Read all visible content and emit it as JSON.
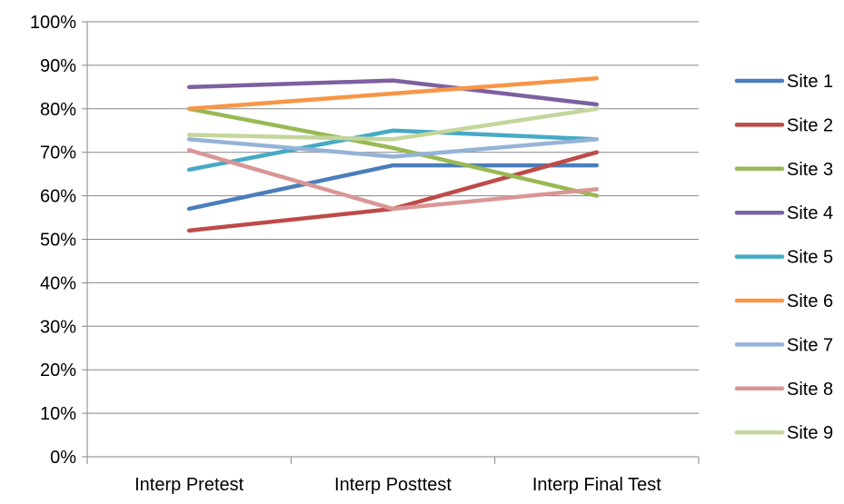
{
  "chart_data": {
    "type": "line",
    "categories": [
      "Interp Pretest",
      "Interp Posttest",
      "Interp Final Test"
    ],
    "y_axis": {
      "min": 0,
      "max": 100,
      "step": 10,
      "tick_labels": [
        "0%",
        "10%",
        "20%",
        "30%",
        "40%",
        "50%",
        "60%",
        "70%",
        "80%",
        "90%",
        "100%"
      ]
    },
    "grid": "horizontal",
    "legend_position": "right",
    "series": [
      {
        "name": "Site 1",
        "color": "#4a7ebb",
        "values": [
          57,
          67,
          67
        ]
      },
      {
        "name": "Site 2",
        "color": "#be4b48",
        "values": [
          52,
          57,
          70
        ]
      },
      {
        "name": "Site 3",
        "color": "#98b954",
        "values": [
          80,
          71,
          60
        ]
      },
      {
        "name": "Site 4",
        "color": "#7d60a0",
        "values": [
          85,
          86.5,
          81
        ]
      },
      {
        "name": "Site 5",
        "color": "#46aac5",
        "values": [
          66,
          75,
          73
        ]
      },
      {
        "name": "Site 6",
        "color": "#f79646",
        "values": [
          80,
          83.5,
          87
        ]
      },
      {
        "name": "Site 7",
        "color": "#95b3d7",
        "values": [
          73,
          69,
          73
        ]
      },
      {
        "name": "Site 8",
        "color": "#d99694",
        "values": [
          70.5,
          57,
          61.5
        ]
      },
      {
        "name": "Site 9",
        "color": "#c3d69b",
        "values": [
          74,
          73,
          80
        ]
      }
    ]
  }
}
